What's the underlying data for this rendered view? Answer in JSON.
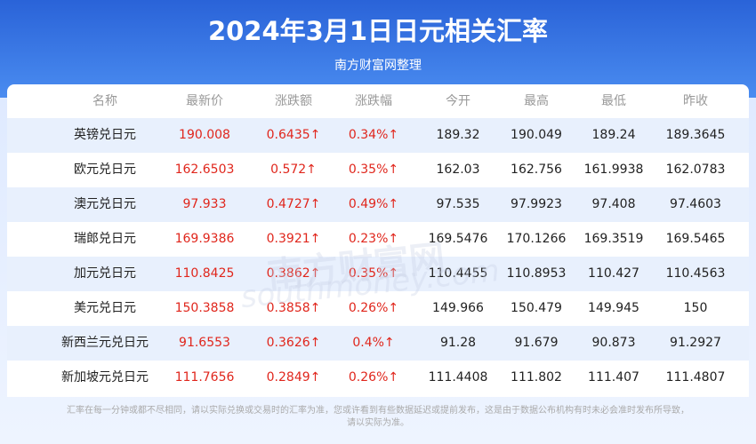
{
  "header": {
    "title": "2024年3月1日日元相关汇率",
    "subtitle": "南方财富网整理"
  },
  "table": {
    "columns": [
      "名称",
      "最新价",
      "涨跌额",
      "涨跌幅",
      "今开",
      "最高",
      "最低",
      "昨收"
    ],
    "rows": [
      [
        "英镑兑日元",
        "190.008",
        "0.6435↑",
        "0.34%↑",
        "189.32",
        "190.049",
        "189.24",
        "189.3645"
      ],
      [
        "欧元兑日元",
        "162.6503",
        "0.572↑",
        "0.35%↑",
        "162.03",
        "162.756",
        "161.9938",
        "162.0783"
      ],
      [
        "澳元兑日元",
        "97.933",
        "0.4727↑",
        "0.49%↑",
        "97.535",
        "97.9923",
        "97.408",
        "97.4603"
      ],
      [
        "瑞郎兑日元",
        "169.9386",
        "0.3921↑",
        "0.23%↑",
        "169.5476",
        "170.1266",
        "169.3519",
        "169.5465"
      ],
      [
        "加元兑日元",
        "110.8425",
        "0.3862↑",
        "0.35%↑",
        "110.4455",
        "110.8953",
        "110.427",
        "110.4563"
      ],
      [
        "美元兑日元",
        "150.3858",
        "0.3858↑",
        "0.26%↑",
        "149.966",
        "150.479",
        "149.945",
        "150"
      ],
      [
        "新西兰元兑日元",
        "91.6553",
        "0.3626↑",
        "0.4%↑",
        "91.28",
        "91.679",
        "90.873",
        "91.2927"
      ],
      [
        "新加坡元兑日元",
        "111.7656",
        "0.2849↑",
        "0.26%↑",
        "111.4408",
        "111.802",
        "111.407",
        "111.4807"
      ]
    ]
  },
  "watermark": {
    "name": "南方财富网",
    "site": "southmoney.com"
  },
  "footer": {
    "line1": "汇率在每一分钟或都不尽相同，请以实际兑换或交易时的汇率为准，您或许看到有些数据延迟或提前发布，这是由于数据公布机构有时未必会准时发布所导致，",
    "line2": "请以实际为准。"
  }
}
